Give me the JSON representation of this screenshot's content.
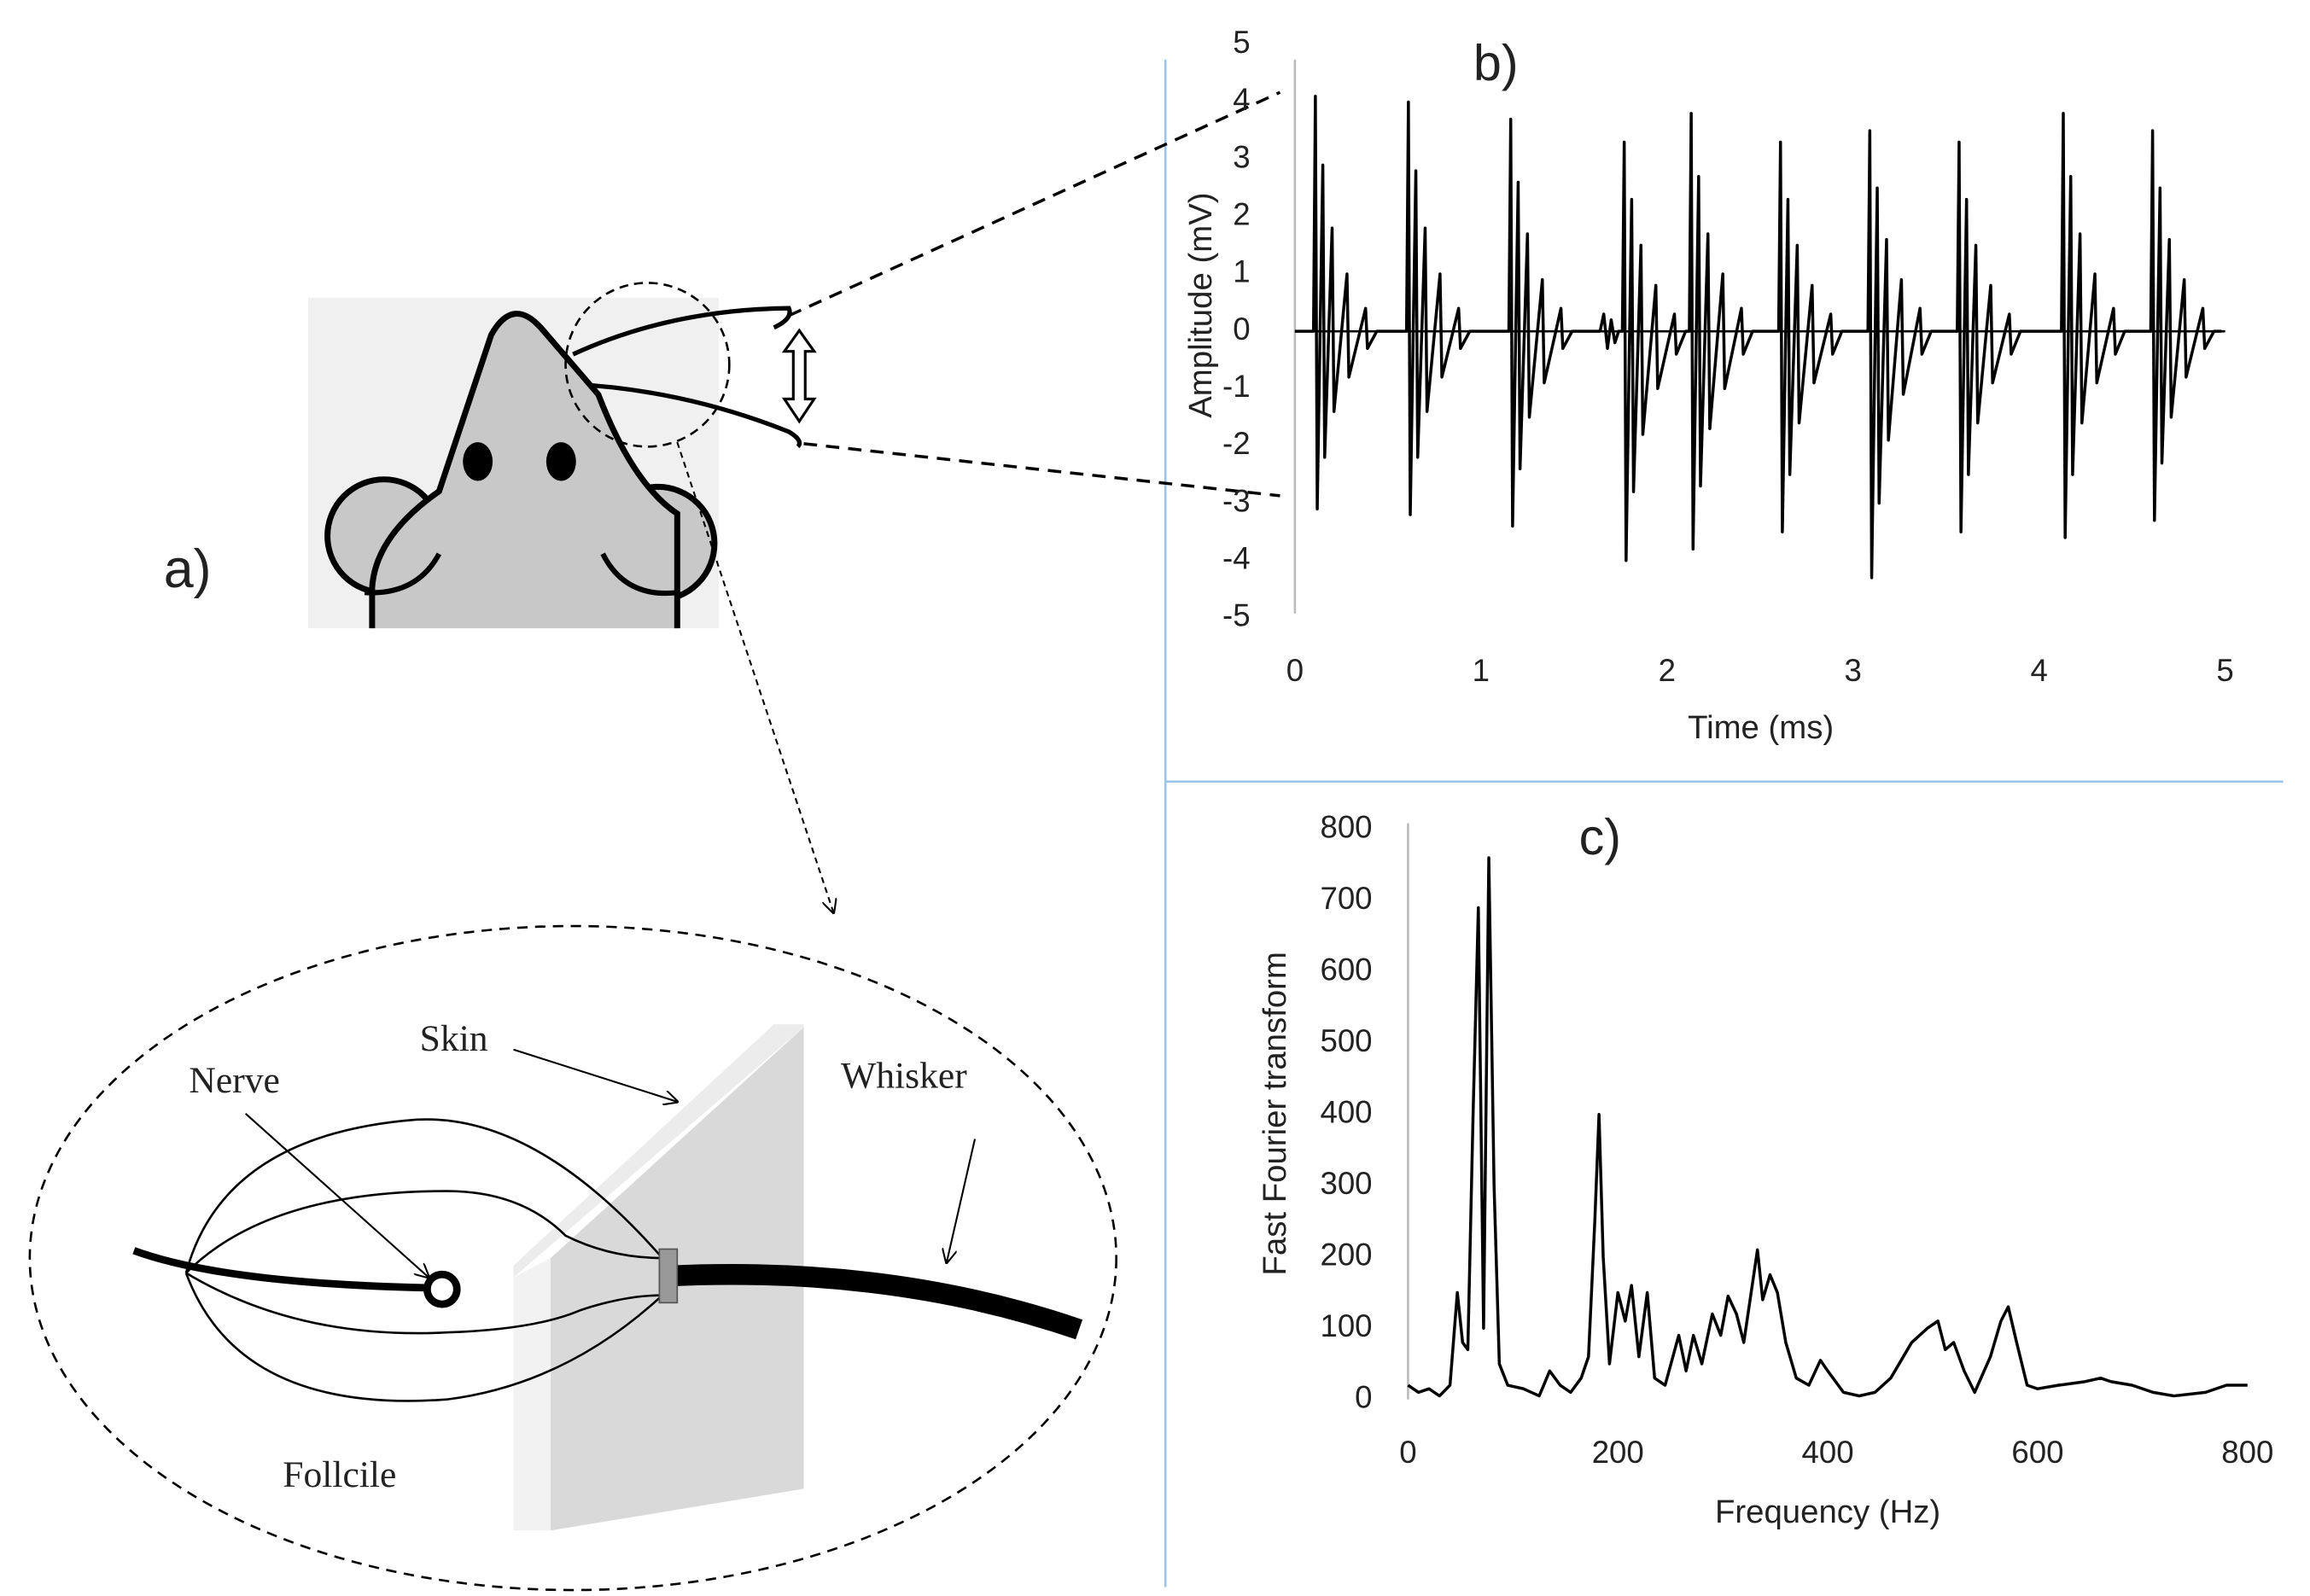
{
  "diagram": {
    "label": "a)",
    "nerve": "Nerve",
    "skin": "Skin",
    "whisker": "Whisker",
    "follicle": "Follcile"
  },
  "chart_data": [
    {
      "type": "line",
      "title": "b)",
      "xlabel": "Time (ms)",
      "ylabel": "Amplitude (mV)",
      "color": "#000000",
      "xlim": [
        0,
        5
      ],
      "xticks": [
        0,
        1,
        2,
        3,
        4,
        5
      ],
      "ylim": [
        -5,
        5
      ],
      "yticks": [
        -5,
        -4,
        -3,
        -2,
        -1,
        0,
        1,
        2,
        3,
        4,
        5
      ],
      "x": [
        0,
        0.1,
        0.11,
        0.12,
        0.15,
        0.16,
        0.2,
        0.21,
        0.28,
        0.29,
        0.38,
        0.39,
        0.44,
        0.6,
        0.61,
        0.62,
        0.65,
        0.66,
        0.7,
        0.71,
        0.78,
        0.79,
        0.88,
        0.89,
        0.94,
        1.15,
        1.16,
        1.17,
        1.2,
        1.21,
        1.25,
        1.26,
        1.33,
        1.34,
        1.43,
        1.44,
        1.49,
        1.64,
        1.66,
        1.68,
        1.7,
        1.72,
        1.74,
        1.76,
        1.77,
        1.78,
        1.81,
        1.82,
        1.86,
        1.87,
        1.94,
        1.95,
        2.04,
        2.05,
        2.1,
        2.12,
        2.13,
        2.14,
        2.17,
        2.18,
        2.22,
        2.23,
        2.3,
        2.31,
        2.4,
        2.41,
        2.46,
        2.6,
        2.61,
        2.62,
        2.65,
        2.66,
        2.7,
        2.71,
        2.78,
        2.79,
        2.88,
        2.89,
        2.94,
        3.08,
        3.09,
        3.1,
        3.13,
        3.14,
        3.18,
        3.19,
        3.26,
        3.27,
        3.36,
        3.37,
        3.42,
        3.56,
        3.57,
        3.58,
        3.61,
        3.62,
        3.66,
        3.67,
        3.74,
        3.75,
        3.84,
        3.85,
        3.9,
        4.12,
        4.13,
        4.14,
        4.17,
        4.18,
        4.22,
        4.23,
        4.3,
        4.31,
        4.4,
        4.41,
        4.46,
        4.6,
        4.61,
        4.62,
        4.65,
        4.66,
        4.7,
        4.71,
        4.78,
        4.79,
        4.88,
        4.89,
        4.94,
        4.98
      ],
      "values": [
        0,
        0,
        4.1,
        -3.1,
        2.9,
        -2.2,
        1.8,
        -1.4,
        1,
        -0.8,
        0.4,
        -0.3,
        0,
        0,
        4,
        -3.2,
        2.8,
        -2.2,
        1.8,
        -1.4,
        1,
        -0.8,
        0.4,
        -0.3,
        0,
        0,
        3.7,
        -3.4,
        2.6,
        -2.4,
        1.7,
        -1.5,
        0.9,
        -0.9,
        0.4,
        -0.3,
        0,
        0,
        0.3,
        -0.3,
        0.2,
        -0.2,
        0,
        0,
        3.3,
        -4,
        2.3,
        -2.8,
        1.5,
        -1.8,
        0.8,
        -1,
        0.3,
        -0.4,
        0,
        0,
        3.8,
        -3.8,
        2.7,
        -2.7,
        1.7,
        -1.7,
        1,
        -1,
        0.4,
        -0.4,
        0,
        0,
        3.3,
        -3.5,
        2.3,
        -2.5,
        1.5,
        -1.6,
        0.8,
        -0.9,
        0.3,
        -0.4,
        0,
        0,
        3.5,
        -4.3,
        2.5,
        -3,
        1.6,
        -1.9,
        0.9,
        -1.1,
        0.4,
        -0.4,
        0,
        0,
        3.3,
        -3.5,
        2.3,
        -2.5,
        1.5,
        -1.6,
        0.8,
        -0.9,
        0.3,
        -0.4,
        0,
        0,
        3.8,
        -3.6,
        2.7,
        -2.5,
        1.7,
        -1.6,
        1,
        -0.9,
        0.4,
        -0.4,
        0,
        0,
        3.5,
        -3.3,
        2.5,
        -2.3,
        1.6,
        -1.5,
        0.9,
        -0.8,
        0.4,
        -0.3,
        0,
        0
      ]
    },
    {
      "type": "line",
      "title": "c)",
      "xlabel": "Frequency (Hz)",
      "ylabel": "Fast Fourier transform",
      "color": "#000000",
      "xlim": [
        0,
        800
      ],
      "xticks": [
        0,
        200,
        400,
        600,
        800
      ],
      "ylim": [
        0,
        800
      ],
      "yticks": [
        0,
        100,
        200,
        300,
        400,
        500,
        600,
        700,
        800
      ],
      "x": [
        0,
        10,
        20,
        30,
        40,
        47,
        52,
        57,
        62,
        67,
        72,
        77,
        82,
        87,
        95,
        110,
        125,
        135,
        145,
        155,
        165,
        172,
        178,
        182,
        186,
        192,
        200,
        207,
        213,
        220,
        228,
        235,
        245,
        258,
        265,
        272,
        280,
        290,
        298,
        305,
        313,
        320,
        328,
        333,
        338,
        345,
        352,
        360,
        370,
        382,
        393,
        400,
        415,
        430,
        445,
        460,
        480,
        495,
        505,
        512,
        520,
        530,
        540,
        555,
        565,
        572,
        580,
        590,
        600,
        620,
        645,
        660,
        670,
        690,
        710,
        730,
        760,
        780,
        800
      ],
      "values": [
        20,
        10,
        15,
        5,
        20,
        150,
        80,
        70,
        400,
        690,
        100,
        760,
        300,
        50,
        20,
        15,
        5,
        40,
        20,
        10,
        30,
        60,
        250,
        400,
        200,
        50,
        150,
        110,
        160,
        60,
        150,
        30,
        20,
        90,
        40,
        90,
        50,
        120,
        90,
        145,
        120,
        80,
        160,
        210,
        140,
        175,
        150,
        80,
        30,
        20,
        55,
        40,
        10,
        5,
        10,
        30,
        80,
        100,
        110,
        70,
        80,
        40,
        10,
        60,
        110,
        130,
        80,
        20,
        15,
        20,
        25,
        30,
        25,
        20,
        10,
        5,
        10,
        20,
        20
      ]
    }
  ]
}
